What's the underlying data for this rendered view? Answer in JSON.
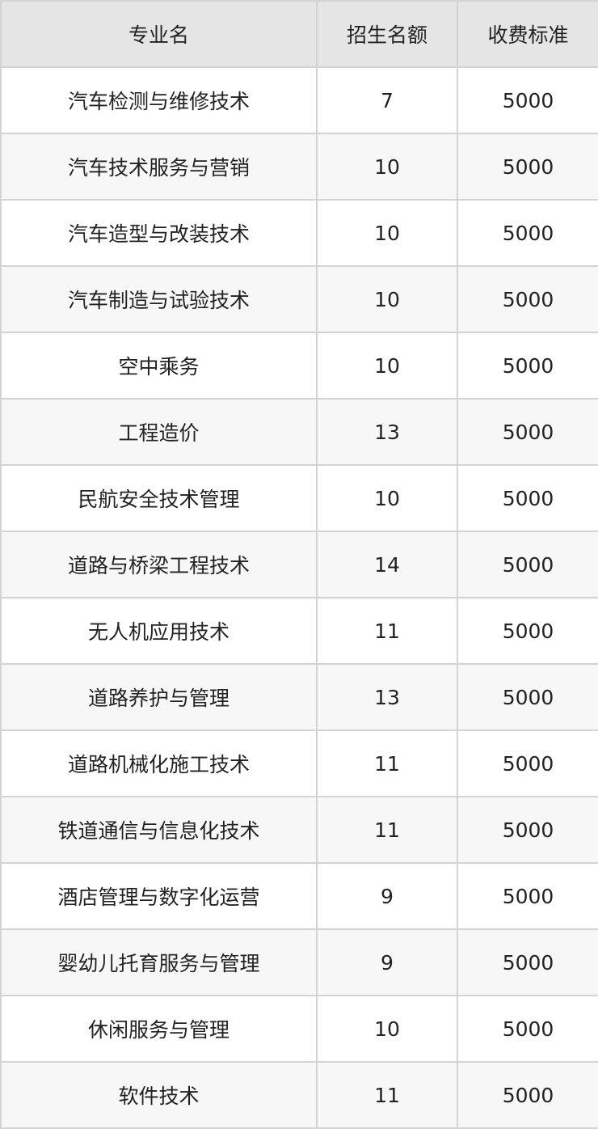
{
  "table": {
    "headers": [
      "专业名",
      "招生名额",
      "收费标准"
    ],
    "rows": [
      [
        "汽车检测与维修技术",
        "7",
        "5000"
      ],
      [
        "汽车技术服务与营销",
        "10",
        "5000"
      ],
      [
        "汽车造型与改装技术",
        "10",
        "5000"
      ],
      [
        "汽车制造与试验技术",
        "10",
        "5000"
      ],
      [
        "空中乘务",
        "10",
        "5000"
      ],
      [
        "工程造价",
        "13",
        "5000"
      ],
      [
        "民航安全技术管理",
        "10",
        "5000"
      ],
      [
        "道路与桥梁工程技术",
        "14",
        "5000"
      ],
      [
        "无人机应用技术",
        "11",
        "5000"
      ],
      [
        "道路养护与管理",
        "13",
        "5000"
      ],
      [
        "道路机械化施工技术",
        "11",
        "5000"
      ],
      [
        "铁道通信与信息化技术",
        "11",
        "5000"
      ],
      [
        "酒店管理与数字化运营",
        "9",
        "5000"
      ],
      [
        "婴幼儿托育服务与管理",
        "9",
        "5000"
      ],
      [
        "休闲服务与管理",
        "10",
        "5000"
      ],
      [
        "软件技术",
        "11",
        "5000"
      ]
    ]
  }
}
